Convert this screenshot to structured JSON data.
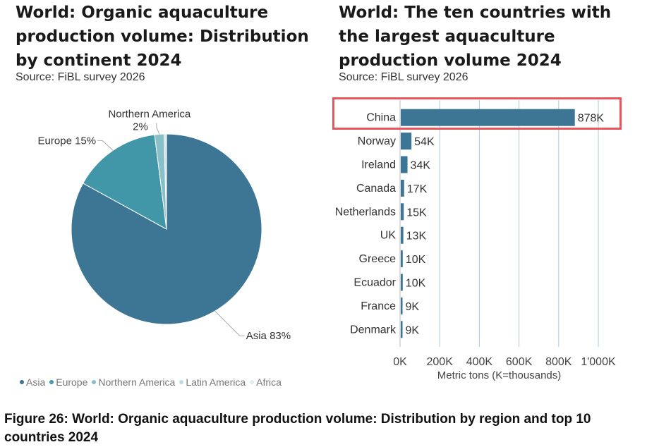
{
  "chart_data": [
    {
      "type": "pie",
      "title": "World: Organic aquaculture production volume: Distribution by continent 2024",
      "subtitle": "Source: FiBL survey 2026",
      "slices": [
        {
          "name": "Asia",
          "value": 83,
          "label": "Asia 83%",
          "color": "#3d7595"
        },
        {
          "name": "Europe",
          "value": 15,
          "label": "Europe 15%",
          "color": "#4197a8"
        },
        {
          "name": "Northern America",
          "value": 1.6,
          "label": "Northern America",
          "label2": "2%",
          "color": "#88bfc9"
        },
        {
          "name": "Latin America",
          "value": 0.3,
          "label": "",
          "color": "#bcdce3"
        },
        {
          "name": "Africa",
          "value": 0.1,
          "label": "",
          "color": "#dcecef"
        }
      ],
      "legend": [
        "Asia",
        "Europe",
        "Northern America",
        "Latin America",
        "Africa"
      ],
      "legend_position": "bottom"
    },
    {
      "type": "bar",
      "orientation": "horizontal",
      "title": "World: The ten countries with the largest aquaculture production volume 2024",
      "subtitle": "Source: FiBL survey 2026",
      "categories": [
        "China",
        "Norway",
        "Ireland",
        "Canada",
        "Netherlands",
        "UK",
        "Greece",
        "Ecuador",
        "France",
        "Denmark"
      ],
      "values": [
        878,
        54,
        34,
        17,
        15,
        13,
        10,
        10,
        9,
        9
      ],
      "data_labels": [
        "878K",
        "54K",
        "34K",
        "17K",
        "15K",
        "13K",
        "10K",
        "10K",
        "9K",
        "9K"
      ],
      "xlabel": "Metric tons (K=thousands)",
      "xticks": [
        0,
        200,
        400,
        600,
        800,
        1000
      ],
      "xtick_labels": [
        "0K",
        "200K",
        "400K",
        "600K",
        "800K",
        "1'000K"
      ],
      "xlim": [
        0,
        1000
      ],
      "bar_color": "#3d7595",
      "highlighted_category": "China"
    }
  ],
  "caption": "Figure 26: World: Organic aquaculture production volume: Distribution by region and top 10 countries 2024"
}
